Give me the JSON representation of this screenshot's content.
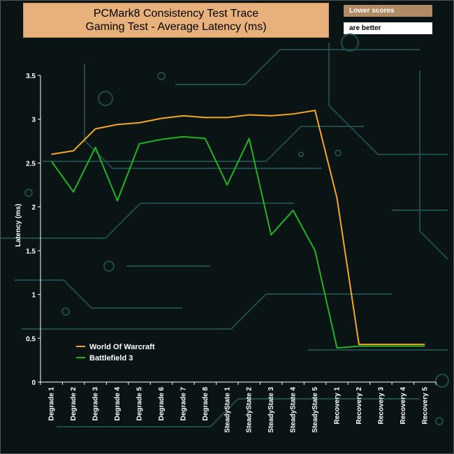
{
  "header": {
    "title_line1": "PCMark8 Consistency Test Trace",
    "title_line2": "Gaming Test -  Average Latency (ms)",
    "note_line1": "Lower scores",
    "note_line2": "are better"
  },
  "colors": {
    "series_1": "#f5a623",
    "series_2": "#22b422",
    "axis": "#ffffff",
    "title_bg": "#e8b07a"
  },
  "chart_data": {
    "type": "line",
    "title": "PCMark8 Consistency Test Trace Gaming Test -  Average Latency (ms)",
    "xlabel": "",
    "ylabel": "Latency (ms)",
    "ylim": [
      0,
      3.5
    ],
    "yticks": [
      "0",
      "0.5",
      "1",
      "1.5",
      "2",
      "2.5",
      "3",
      "3.5"
    ],
    "grid": false,
    "legend_position": "bottom-left",
    "categories": [
      "Degrade 1",
      "Degrade 2",
      "Degrade 3",
      "Degrade 4",
      "Degrade 5",
      "Degrade 6",
      "Degrade 7",
      "Degrade 8",
      "SteadyState 1",
      "SteadyState 2",
      "SteadyState 3",
      "SteadyState 4",
      "SteadyState 5",
      "Recovery 1",
      "Recovery 2",
      "Recovery 3",
      "Recovery 4",
      "Recovery 5"
    ],
    "series": [
      {
        "name": "World Of Warcraft",
        "values": [
          2.6,
          2.64,
          2.89,
          2.94,
          2.96,
          3.01,
          3.04,
          3.02,
          3.02,
          3.05,
          3.04,
          3.06,
          3.1,
          2.1,
          0.43,
          0.43,
          0.43,
          0.43
        ]
      },
      {
        "name": "Battlefield 3",
        "values": [
          2.52,
          2.17,
          2.68,
          2.07,
          2.72,
          2.77,
          2.8,
          2.78,
          2.25,
          2.78,
          1.68,
          1.96,
          1.5,
          0.39,
          0.41,
          0.41,
          0.41,
          0.41
        ]
      }
    ]
  }
}
